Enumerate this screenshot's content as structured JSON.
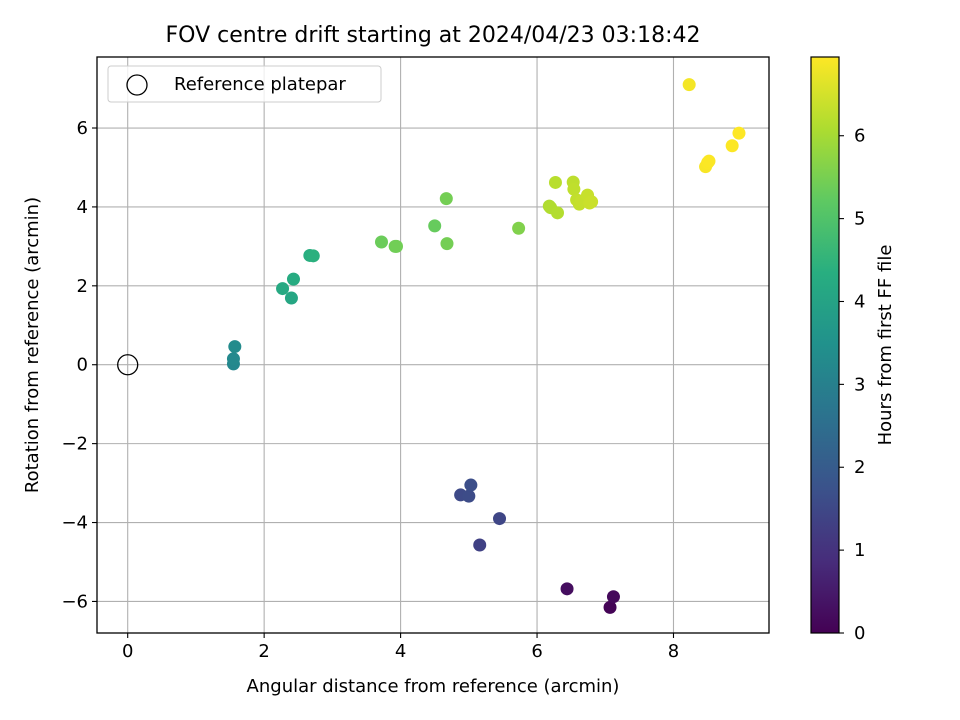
{
  "chart_data": {
    "type": "scatter",
    "title": "FOV centre drift starting at 2024/04/23 03:18:42",
    "xlabel": "Angular distance from reference (arcmin)",
    "ylabel": "Rotation from reference (arcmin)",
    "xlim": [
      -0.45,
      9.4
    ],
    "ylim": [
      -6.8,
      7.8
    ],
    "xticks": [
      0,
      2,
      4,
      6,
      8
    ],
    "xtick_labels": [
      "0",
      "2",
      "4",
      "6",
      "8"
    ],
    "yticks": [
      -6,
      -4,
      -2,
      0,
      2,
      4,
      6
    ],
    "ytick_labels": [
      "−6",
      "−4",
      "−2",
      "0",
      "2",
      "4",
      "6"
    ],
    "grid": true,
    "legend": {
      "location": "upper-left",
      "entries": [
        "Reference platepar"
      ]
    },
    "reference_point": {
      "x": 0,
      "y": 0,
      "label": "Reference platepar"
    },
    "colorbar": {
      "label": "Hours from first FF file",
      "min": 0,
      "max": 6.95,
      "ticks": [
        0,
        1,
        2,
        3,
        4,
        5,
        6
      ],
      "tick_labels": [
        "0",
        "1",
        "2",
        "3",
        "4",
        "5",
        "6"
      ],
      "colormap": "viridis"
    },
    "points": [
      {
        "x": 7.07,
        "y": -6.15,
        "hours": 0.05
      },
      {
        "x": 7.12,
        "y": -5.88,
        "hours": 0.15
      },
      {
        "x": 6.44,
        "y": -5.68,
        "hours": 0.25
      },
      {
        "x": 5.16,
        "y": -4.57,
        "hours": 1.35
      },
      {
        "x": 5.45,
        "y": -3.9,
        "hours": 1.45
      },
      {
        "x": 4.88,
        "y": -3.3,
        "hours": 1.55
      },
      {
        "x": 5.0,
        "y": -3.33,
        "hours": 1.6
      },
      {
        "x": 5.03,
        "y": -3.05,
        "hours": 1.65
      },
      {
        "x": 1.55,
        "y": 0.02,
        "hours": 3.2
      },
      {
        "x": 1.55,
        "y": 0.15,
        "hours": 3.25
      },
      {
        "x": 1.57,
        "y": 0.46,
        "hours": 3.3
      },
      {
        "x": 2.4,
        "y": 1.69,
        "hours": 4.1
      },
      {
        "x": 2.27,
        "y": 1.93,
        "hours": 4.2
      },
      {
        "x": 2.43,
        "y": 2.17,
        "hours": 4.25
      },
      {
        "x": 2.67,
        "y": 2.77,
        "hours": 4.35
      },
      {
        "x": 2.72,
        "y": 2.76,
        "hours": 4.4
      },
      {
        "x": 3.72,
        "y": 3.11,
        "hours": 5.35
      },
      {
        "x": 3.92,
        "y": 3.0,
        "hours": 5.4
      },
      {
        "x": 3.94,
        "y": 3.0,
        "hours": 5.42
      },
      {
        "x": 4.5,
        "y": 3.52,
        "hours": 5.3
      },
      {
        "x": 4.68,
        "y": 3.07,
        "hours": 5.45
      },
      {
        "x": 4.67,
        "y": 4.21,
        "hours": 5.45
      },
      {
        "x": 5.73,
        "y": 3.46,
        "hours": 5.6
      },
      {
        "x": 6.18,
        "y": 4.02,
        "hours": 6.1
      },
      {
        "x": 6.2,
        "y": 3.98,
        "hours": 6.12
      },
      {
        "x": 6.3,
        "y": 3.85,
        "hours": 6.15
      },
      {
        "x": 6.27,
        "y": 4.62,
        "hours": 6.2
      },
      {
        "x": 6.53,
        "y": 4.63,
        "hours": 6.25
      },
      {
        "x": 6.54,
        "y": 4.45,
        "hours": 6.28
      },
      {
        "x": 6.58,
        "y": 4.18,
        "hours": 6.3
      },
      {
        "x": 6.62,
        "y": 4.07,
        "hours": 6.32
      },
      {
        "x": 6.65,
        "y": 4.15,
        "hours": 6.34
      },
      {
        "x": 6.74,
        "y": 4.3,
        "hours": 6.36
      },
      {
        "x": 6.77,
        "y": 4.1,
        "hours": 6.38
      },
      {
        "x": 6.8,
        "y": 4.13,
        "hours": 6.4
      },
      {
        "x": 8.23,
        "y": 7.1,
        "hours": 6.85
      },
      {
        "x": 8.47,
        "y": 5.02,
        "hours": 6.9
      },
      {
        "x": 8.5,
        "y": 5.12,
        "hours": 6.92
      },
      {
        "x": 8.52,
        "y": 5.16,
        "hours": 6.93
      },
      {
        "x": 8.86,
        "y": 5.55,
        "hours": 6.94
      },
      {
        "x": 8.96,
        "y": 5.87,
        "hours": 6.95
      }
    ]
  }
}
